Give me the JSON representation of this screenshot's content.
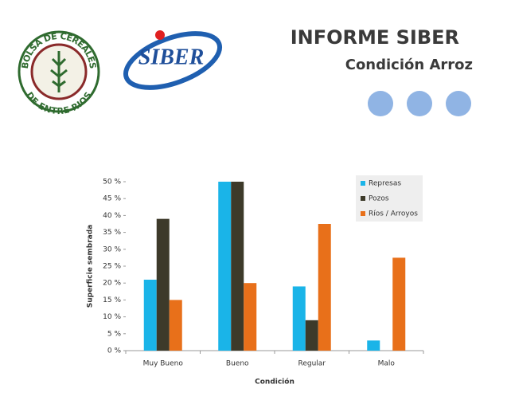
{
  "header": {
    "title": "INFORME SIBER",
    "subtitle": "Condición Arroz",
    "logo_top": "BOLSA DE CEREALES",
    "logo_bottom": "DE ENTRE RIOS",
    "brand": "SIBER"
  },
  "chart_data": {
    "type": "bar",
    "x_label": "Condición",
    "y_label": "Superficie sembrada",
    "categories": [
      "Muy Bueno",
      "Bueno",
      "Regular",
      "Malo"
    ],
    "series": [
      {
        "name": "Represas",
        "color": "#1ab4e8",
        "values": [
          21,
          50,
          19,
          3
        ]
      },
      {
        "name": "Pozos",
        "color": "#3d3a2a",
        "values": [
          39,
          50,
          9,
          0
        ]
      },
      {
        "name": "Ríos / Arroyos",
        "color": "#e8701a",
        "values": [
          15,
          20,
          37.5,
          27.5
        ]
      }
    ],
    "ylim": [
      0,
      50
    ],
    "yticks": [
      {
        "value": 0,
        "label": "0 %"
      },
      {
        "value": 5,
        "label": "5 %"
      },
      {
        "value": 10,
        "label": "10 %"
      },
      {
        "value": 15,
        "label": "15 %"
      },
      {
        "value": 20,
        "label": "20 %"
      },
      {
        "value": 25,
        "label": "25 %"
      },
      {
        "value": 30,
        "label": "30 %"
      },
      {
        "value": 35,
        "label": "35 %"
      },
      {
        "value": 40,
        "label": "40 %"
      },
      {
        "value": 45,
        "label": "45 %"
      },
      {
        "value": 50,
        "label": "50 %"
      }
    ],
    "grid": false,
    "legend": "upper right"
  }
}
